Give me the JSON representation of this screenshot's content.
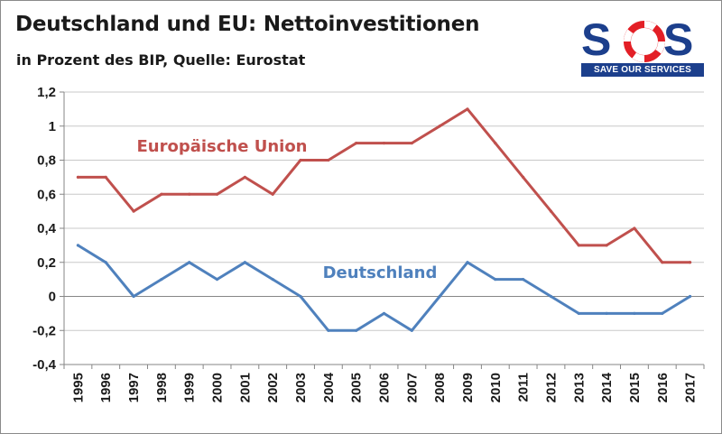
{
  "header": {
    "title": "Deutschland und EU: Nettoinvestitionen",
    "subtitle": "in Prozent des BIP, Quelle: Eurostat"
  },
  "logo": {
    "letters": "SOS",
    "tagline": "SAVE OUR SERVICES",
    "colors": {
      "blue": "#1c3f8c",
      "red": "#e31f26"
    }
  },
  "chart_data": {
    "type": "line",
    "title": "Deutschland und EU: Nettoinvestitionen",
    "subtitle": "in Prozent des BIP, Quelle: Eurostat",
    "xlabel": "",
    "ylabel": "",
    "x": [
      "1995",
      "1996",
      "1997",
      "1998",
      "1999",
      "2000",
      "2001",
      "2002",
      "2003",
      "2004",
      "2005",
      "2006",
      "2007",
      "2008",
      "2009",
      "2010",
      "2011",
      "2012",
      "2013",
      "2014",
      "2015",
      "2016",
      "2017"
    ],
    "ylim": [
      -0.4,
      1.2
    ],
    "y_ticks": [
      -0.4,
      -0.2,
      0,
      0.2,
      0.4,
      0.6,
      0.8,
      1,
      1.2
    ],
    "y_tick_labels": [
      "-0,4",
      "-0,2",
      "0",
      "0,2",
      "0,4",
      "0,6",
      "0,8",
      "1",
      "1,2"
    ],
    "grid": {
      "horizontal": true,
      "vertical": false
    },
    "legend": "inline labels",
    "series": [
      {
        "name": "Europäische Union",
        "color": "#c0504d",
        "values": [
          0.7,
          0.7,
          0.5,
          0.6,
          0.6,
          0.6,
          0.7,
          0.6,
          0.8,
          0.8,
          0.9,
          0.9,
          0.9,
          1.0,
          1.1,
          0.9,
          0.7,
          0.5,
          0.3,
          0.3,
          0.4,
          0.2,
          0.2
        ]
      },
      {
        "name": "Deutschland",
        "color": "#4f81bd",
        "values": [
          0.3,
          0.2,
          0.0,
          0.1,
          0.2,
          0.1,
          0.2,
          0.1,
          0.0,
          -0.2,
          -0.2,
          -0.1,
          -0.2,
          0.0,
          0.2,
          0.1,
          0.1,
          0.0,
          -0.1,
          -0.1,
          -0.1,
          -0.1,
          0.0
        ]
      }
    ]
  }
}
